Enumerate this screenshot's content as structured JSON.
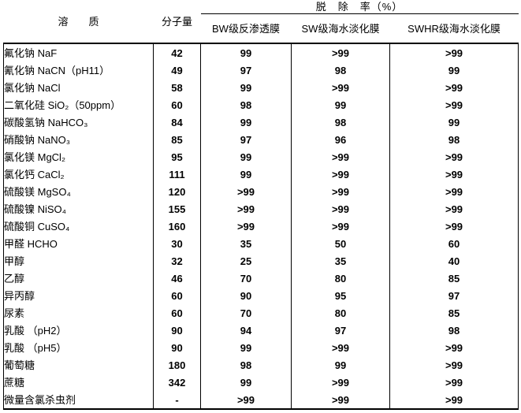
{
  "colors": {
    "text": "#000000",
    "background": "#ffffff",
    "border": "#000000"
  },
  "table": {
    "header": {
      "solute": "溶　　质",
      "molecular_weight": "分子量",
      "rejection_group": "脱　除　率（%）",
      "membranes": [
        "BW级反渗透膜",
        "SW级海水淡化膜",
        "SWHR级海水淡化膜"
      ]
    },
    "rows": [
      {
        "solute": "氟化钠 NaF",
        "mw": "42",
        "bw": "99",
        "sw": ">99",
        "swhr": ">99"
      },
      {
        "solute": "氰化钠 NaCN（pH11）",
        "mw": "49",
        "bw": "97",
        "sw": "98",
        "swhr": "99"
      },
      {
        "solute": "氯化钠 NaCl",
        "mw": "58",
        "bw": "99",
        "sw": ">99",
        "swhr": ">99"
      },
      {
        "solute": "二氧化硅 SiO₂（50ppm）",
        "mw": "60",
        "bw": "98",
        "sw": "99",
        "swhr": ">99"
      },
      {
        "solute": "碳酸氢钠 NaHCO₃",
        "mw": "84",
        "bw": "99",
        "sw": "98",
        "swhr": "99"
      },
      {
        "solute": "硝酸钠 NaNO₃",
        "mw": "85",
        "bw": "97",
        "sw": "96",
        "swhr": "98"
      },
      {
        "solute": "氯化镁 MgCl₂",
        "mw": "95",
        "bw": "99",
        "sw": ">99",
        "swhr": ">99"
      },
      {
        "solute": "氯化钙 CaCl₂",
        "mw": "111",
        "bw": "99",
        "sw": ">99",
        "swhr": ">99"
      },
      {
        "solute": "硫酸镁 MgSO₄",
        "mw": "120",
        "bw": ">99",
        "sw": ">99",
        "swhr": ">99"
      },
      {
        "solute": "硫酸镍 NiSO₄",
        "mw": "155",
        "bw": ">99",
        "sw": ">99",
        "swhr": ">99"
      },
      {
        "solute": "硫酸铜 CuSO₄",
        "mw": "160",
        "bw": ">99",
        "sw": ">99",
        "swhr": ">99"
      },
      {
        "solute": "甲醛 HCHO",
        "mw": "30",
        "bw": "35",
        "sw": "50",
        "swhr": "60"
      },
      {
        "solute": "甲醇",
        "mw": "32",
        "bw": "25",
        "sw": "35",
        "swhr": "40"
      },
      {
        "solute": "乙醇",
        "mw": "46",
        "bw": "70",
        "sw": "80",
        "swhr": "85"
      },
      {
        "solute": "异丙醇",
        "mw": "60",
        "bw": "90",
        "sw": "95",
        "swhr": "97"
      },
      {
        "solute": "尿素",
        "mw": "60",
        "bw": "70",
        "sw": "80",
        "swhr": "85"
      },
      {
        "solute": "乳酸 （pH2）",
        "mw": "90",
        "bw": "94",
        "sw": "97",
        "swhr": "98"
      },
      {
        "solute": "乳酸 （pH5）",
        "mw": "90",
        "bw": "99",
        "sw": ">99",
        "swhr": ">99"
      },
      {
        "solute": "葡萄糖",
        "mw": "180",
        "bw": "98",
        "sw": "99",
        "swhr": ">99"
      },
      {
        "solute": "蔗糖",
        "mw": "342",
        "bw": "99",
        "sw": ">99",
        "swhr": ">99"
      },
      {
        "solute": "微量含氯杀虫剂",
        "mw": "-",
        "bw": ">99",
        "sw": ">99",
        "swhr": ">99"
      }
    ]
  }
}
